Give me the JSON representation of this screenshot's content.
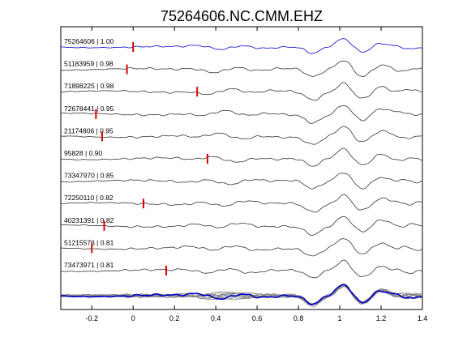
{
  "chart_data": {
    "type": "line",
    "title": "75264606.NC.CMM.EHZ",
    "xlabel": "",
    "ylabel": "",
    "xlim": [
      -0.35,
      1.4
    ],
    "xticks": [
      -0.2,
      0,
      0.2,
      0.4,
      0.6,
      0.8,
      1,
      1.2,
      1.4
    ],
    "xtick_labels": [
      "-0.2",
      "0",
      "0.2",
      "0.4",
      "0.6",
      "0.8",
      "1",
      "1.2",
      "1.4"
    ],
    "grid": false,
    "legend": "none",
    "colors": {
      "reference": "#0000cc",
      "trace": "#333333",
      "stack": "#808080",
      "marker": "#dd0000"
    },
    "reference_index": 0,
    "series": [
      {
        "name": "75264606 | 1.00",
        "pick": 0.0
      },
      {
        "name": "51183959 | 0.98",
        "pick": -0.03
      },
      {
        "name": "71898225 | 0.98",
        "pick": 0.31
      },
      {
        "name": "72678441 | 0.95",
        "pick": -0.18
      },
      {
        "name": "21174806 | 0.95",
        "pick": -0.15
      },
      {
        "name": "95828 | 0.90",
        "pick": 0.36
      },
      {
        "name": "73347970 | 0.85",
        "pick": null
      },
      {
        "name": "72250110 | 0.82",
        "pick": 0.05
      },
      {
        "name": "40231391 | 0.82",
        "pick": -0.14
      },
      {
        "name": "51215576 | 0.81",
        "pick": -0.2
      },
      {
        "name": "73473971 | 0.81",
        "pick": 0.16
      }
    ]
  }
}
